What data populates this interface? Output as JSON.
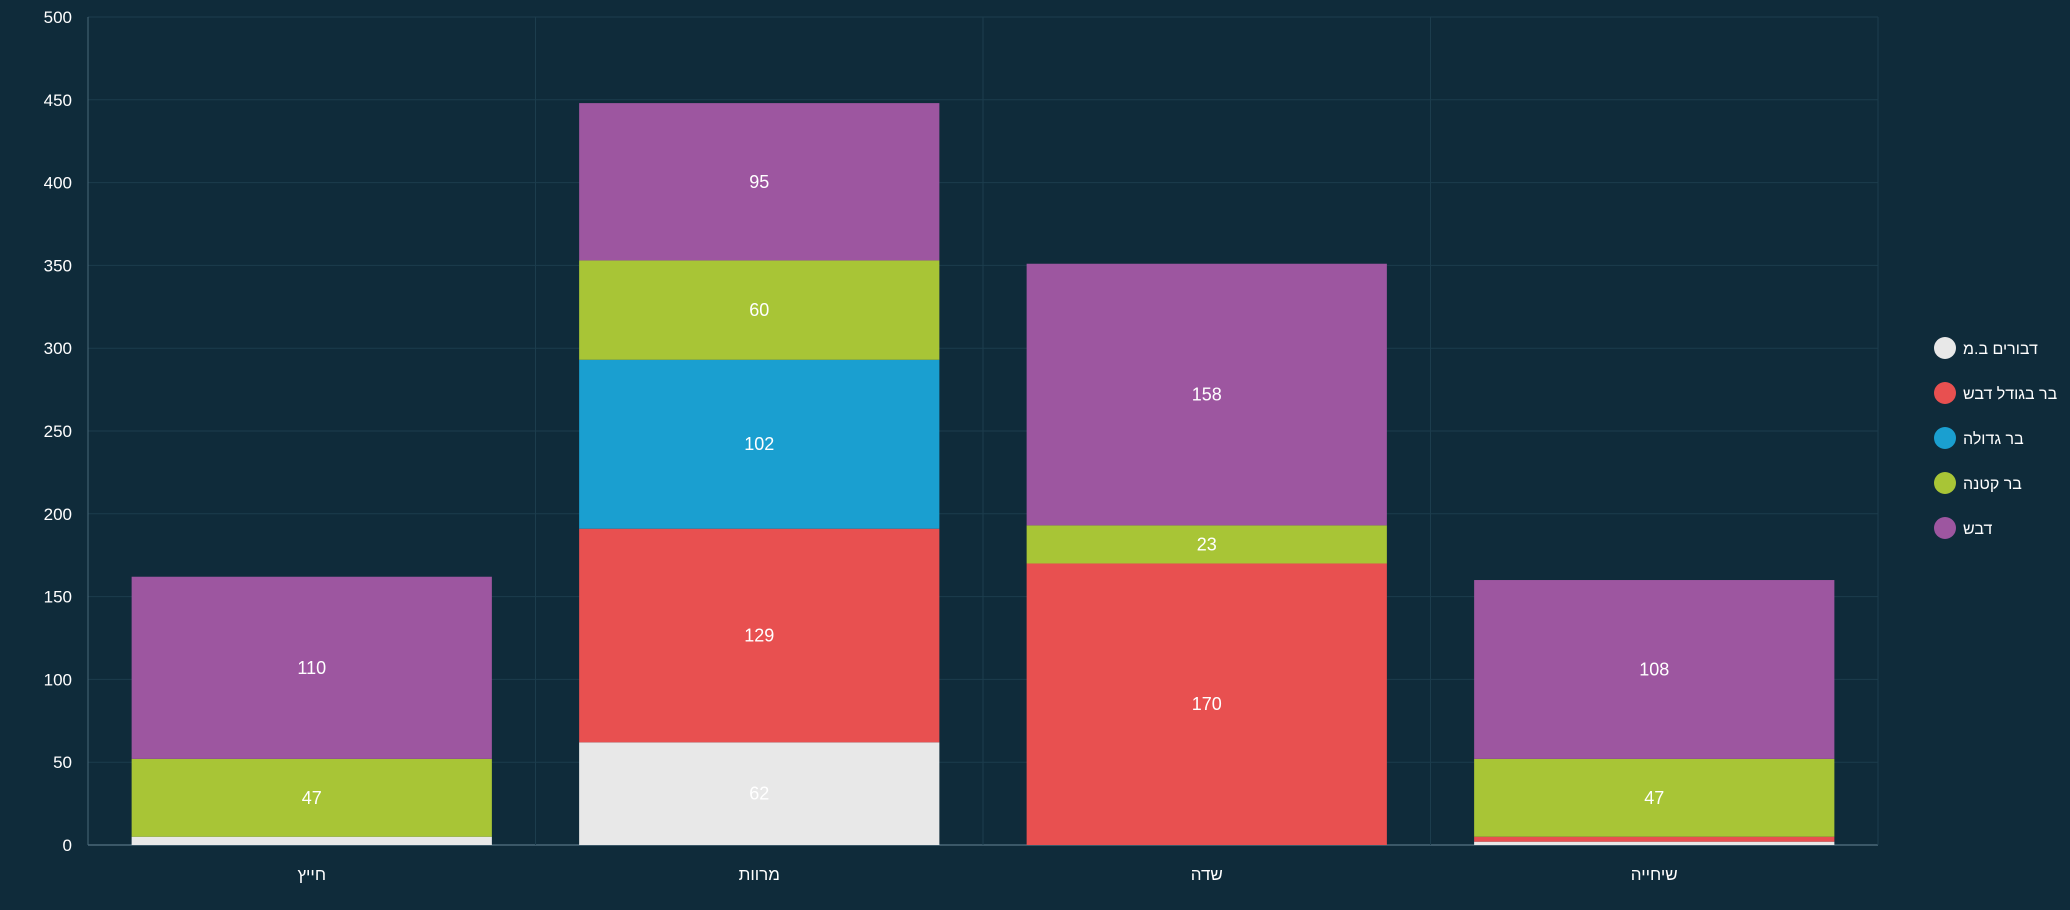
{
  "chart_data": {
    "type": "bar",
    "stacked": true,
    "categories": [
      "חייץ",
      "מרוות",
      "שדה",
      "שיחייה"
    ],
    "series": [
      {
        "name": "דבורים ב.מ",
        "color": "#e8e8e8",
        "values": [
          5,
          62,
          0,
          2
        ]
      },
      {
        "name": "בר בגודל דבש",
        "color": "#e85050",
        "values": [
          0,
          129,
          170,
          3
        ]
      },
      {
        "name": "בר גדולה",
        "color": "#1a9fd0",
        "values": [
          0,
          102,
          0,
          0
        ]
      },
      {
        "name": "בר קטנה",
        "color": "#a8c536",
        "values": [
          47,
          60,
          23,
          47
        ]
      },
      {
        "name": "דבש",
        "color": "#9d56a0",
        "values": [
          110,
          95,
          158,
          108
        ]
      }
    ],
    "ylim": [
      0,
      500
    ],
    "yticks": [
      "0",
      "50",
      "100",
      "150",
      "200",
      "250",
      "300",
      "350",
      "400",
      "450",
      "500"
    ],
    "grid": true,
    "legend_position": "right",
    "show_labels_min": 10
  },
  "colors": {
    "background": "#0f2b3a",
    "grid": "#1c3d4d",
    "axis": "#4a6878",
    "text": "#ffffff"
  }
}
